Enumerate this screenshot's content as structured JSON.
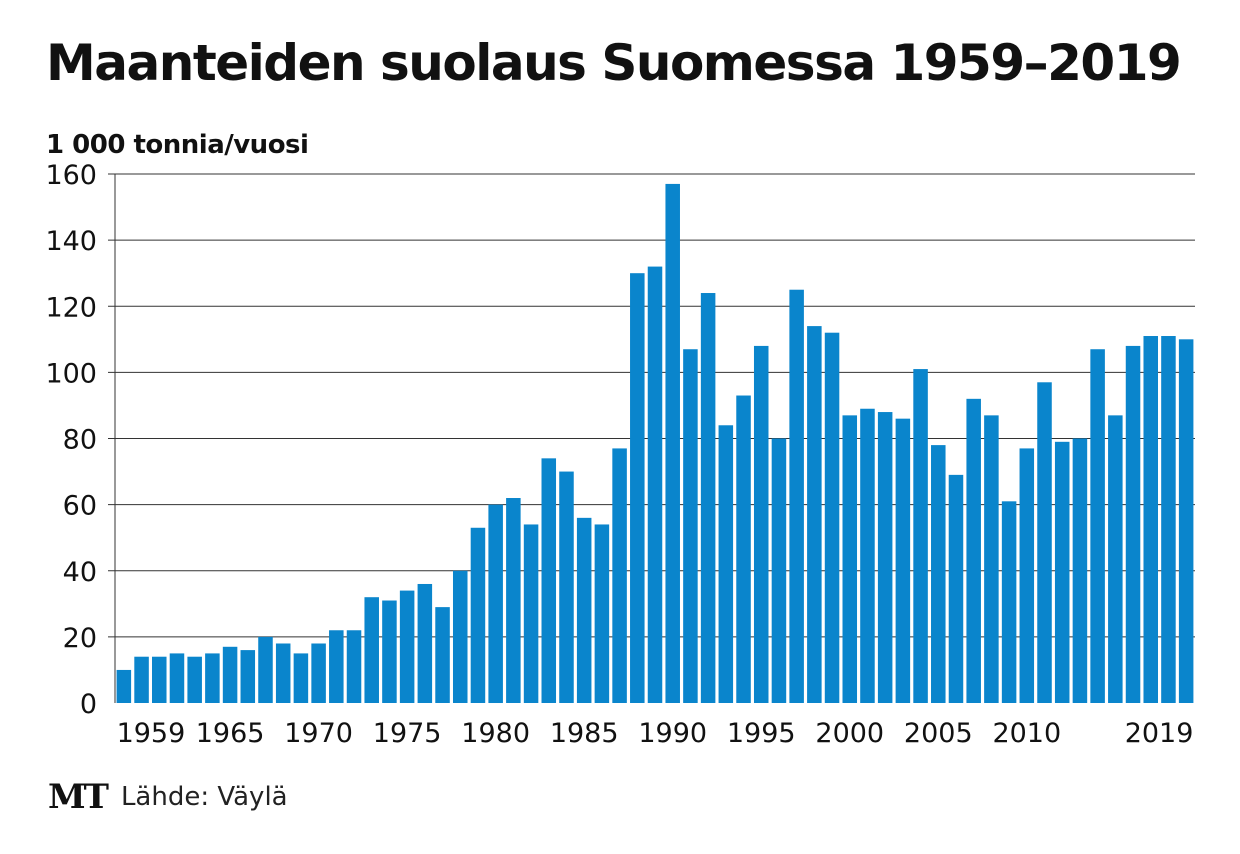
{
  "header": {
    "title": "Maanteiden suolaus Suomessa 1959–2019",
    "unit": "1 000 tonnia/vuosi"
  },
  "footer": {
    "logo": "MT",
    "source": "Lähde: Väylä"
  },
  "colors": {
    "bar": "#0a85cc",
    "grid": "#333333",
    "text": "#111111"
  },
  "chart_data": {
    "type": "bar",
    "title": "Maanteiden suolaus Suomessa 1959–2019",
    "ylabel": "1 000 tonnia/vuosi",
    "xlabel": "",
    "ylim": [
      0,
      160
    ],
    "yticks": [
      0,
      20,
      40,
      60,
      80,
      100,
      120,
      140,
      160
    ],
    "grid": true,
    "xtick_labels": [
      "1959",
      "1965",
      "1970",
      "1975",
      "1980",
      "1985",
      "1990",
      "1995",
      "2000",
      "2005",
      "2010",
      "2019"
    ],
    "categories": [
      "1959",
      "1960",
      "1961",
      "1962",
      "1963",
      "1964",
      "1965",
      "1966",
      "1967",
      "1968",
      "1969",
      "1970",
      "1971",
      "1972",
      "1973",
      "1974",
      "1975",
      "1976",
      "1977",
      "1978",
      "1979",
      "1980",
      "1981",
      "1982",
      "1983",
      "1984",
      "1985",
      "1986",
      "1987",
      "1988",
      "1989",
      "1990",
      "1991",
      "1992",
      "1993",
      "1994",
      "1995",
      "1996",
      "1997",
      "1998",
      "1999",
      "2000",
      "2001",
      "2002",
      "2003",
      "2004",
      "2005",
      "2006",
      "2007",
      "2008",
      "2009",
      "2010",
      "2011",
      "2012",
      "2013",
      "2014",
      "2015",
      "2016",
      "2017",
      "2018",
      "2019"
    ],
    "values": [
      10,
      14,
      14,
      15,
      14,
      15,
      17,
      16,
      20,
      18,
      15,
      18,
      22,
      22,
      32,
      31,
      34,
      36,
      29,
      40,
      53,
      60,
      62,
      54,
      74,
      70,
      56,
      54,
      77,
      130,
      132,
      157,
      107,
      124,
      84,
      93,
      108,
      80,
      125,
      114,
      112,
      87,
      89,
      88,
      86,
      101,
      78,
      69,
      92,
      87,
      61,
      77,
      97,
      79,
      80,
      107,
      87,
      108,
      111,
      111,
      110
    ]
  }
}
